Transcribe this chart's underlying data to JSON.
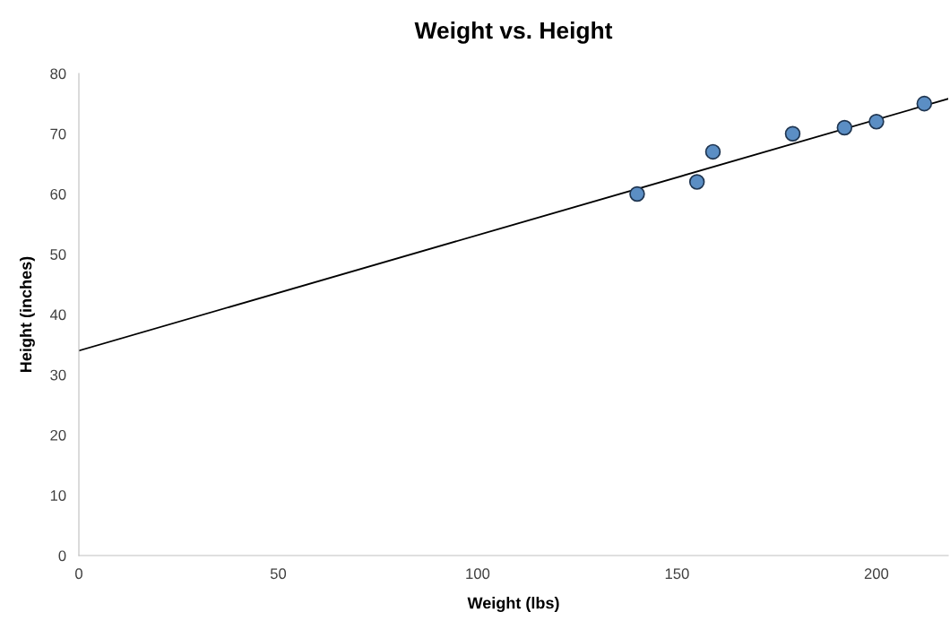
{
  "chart_data": {
    "type": "scatter",
    "title": "Weight vs. Height",
    "xlabel": "Weight (lbs)",
    "ylabel": "Height (inches)",
    "xlim": [
      0,
      218
    ],
    "xticks": [
      0,
      50,
      100,
      150,
      200
    ],
    "ylim": [
      0,
      80
    ],
    "yticks": [
      0,
      10,
      20,
      30,
      40,
      50,
      60,
      70,
      80
    ],
    "grid": false,
    "legend": false,
    "series": [
      {
        "color": "#5b8ec4",
        "marker": "circle",
        "x": [
          140,
          155,
          159,
          179,
          192,
          200,
          212
        ],
        "values": [
          60,
          62,
          67,
          70,
          71,
          72,
          75
        ]
      },
      {
        "type": "line",
        "color": "#000000",
        "marker": "none",
        "line_style": "solid",
        "x": [
          0,
          218
        ],
        "values": [
          34,
          75.8
        ]
      }
    ]
  }
}
